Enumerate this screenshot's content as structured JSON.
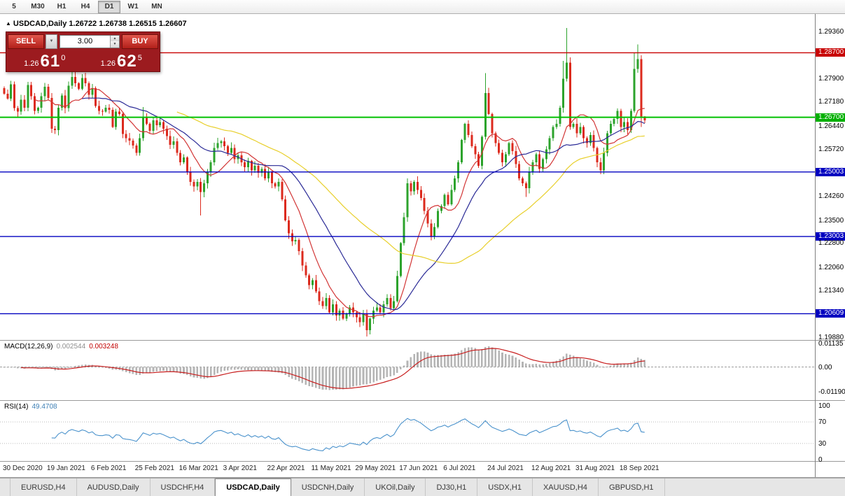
{
  "toolbar": {
    "timeframes": [
      {
        "label": "5",
        "active": false
      },
      {
        "label": "M30",
        "active": false
      },
      {
        "label": "H1",
        "active": false
      },
      {
        "label": "H4",
        "active": false
      },
      {
        "label": "D1",
        "active": true
      },
      {
        "label": "W1",
        "active": false
      },
      {
        "label": "MN",
        "active": false
      }
    ]
  },
  "chart_header": {
    "expand_icon": "▲",
    "symbol_period": "USDCAD,Daily",
    "ohlc": "1.26722 1.26738 1.26515 1.26607"
  },
  "trade_panel": {
    "sell_label": "SELL",
    "buy_label": "BUY",
    "volume": "3.00",
    "dropdown_icon": "▼",
    "spin_up_icon": "▲",
    "spin_down_icon": "▼",
    "bid": {
      "prefix": "1.26",
      "big": "61",
      "sup": "0"
    },
    "ask": {
      "prefix": "1.26",
      "big": "62",
      "sup": "5"
    }
  },
  "indicators": {
    "macd_name": "MACD(12,26,9)",
    "macd_main_value": "0.002544",
    "macd_signal_value": "0.003248",
    "rsi_name": "RSI(14)",
    "rsi_value": "49.4708"
  },
  "tabs": [
    {
      "label": "EURUSD,H4",
      "active": false
    },
    {
      "label": "AUDUSD,Daily",
      "active": false
    },
    {
      "label": "USDCHF,H4",
      "active": false
    },
    {
      "label": "USDCAD,Daily",
      "active": true
    },
    {
      "label": "USDCNH,Daily",
      "active": false
    },
    {
      "label": "UKOil,Daily",
      "active": false
    },
    {
      "label": "DJ30,H1",
      "active": false
    },
    {
      "label": "USDX,H1",
      "active": false
    },
    {
      "label": "XAUUSD,H4",
      "active": false
    },
    {
      "label": "GBPUSD,H1",
      "active": false
    }
  ],
  "chart_data": {
    "type": "candlestick",
    "symbol": "USDCAD",
    "timeframe": "Daily",
    "ohlc_current": {
      "open": 1.26722,
      "high": 1.26738,
      "low": 1.26515,
      "close": 1.26607
    },
    "ylim": [
      1.1988,
      1.2936
    ],
    "x_axis_dates": [
      {
        "text": "30 Dec 2020",
        "bar": 0
      },
      {
        "text": "19 Jan 2021",
        "bar": 13
      },
      {
        "text": "6 Feb 2021",
        "bar": 26
      },
      {
        "text": "25 Feb 2021",
        "bar": 39
      },
      {
        "text": "16 Mar 2021",
        "bar": 52
      },
      {
        "text": "3 Apr 2021",
        "bar": 65
      },
      {
        "text": "22 Apr 2021",
        "bar": 78
      },
      {
        "text": "11 May 2021",
        "bar": 91
      },
      {
        "text": "29 May 2021",
        "bar": 104
      },
      {
        "text": "17 Jun 2021",
        "bar": 117
      },
      {
        "text": "6 Jul 2021",
        "bar": 130
      },
      {
        "text": "24 Jul 2021",
        "bar": 143
      },
      {
        "text": "12 Aug 2021",
        "bar": 156
      },
      {
        "text": "31 Aug 2021",
        "bar": 169
      },
      {
        "text": "18 Sep 2021",
        "bar": 182
      }
    ],
    "price_axis": [
      {
        "text": "1.29360",
        "value": 1.2936,
        "style": "plain"
      },
      {
        "text": "1.28700",
        "value": 1.287,
        "style": "red"
      },
      {
        "text": "1.27900",
        "value": 1.279,
        "style": "plain"
      },
      {
        "text": "1.27180",
        "value": 1.2718,
        "style": "plain"
      },
      {
        "text": "1.26700",
        "value": 1.267,
        "style": "green"
      },
      {
        "text": "1.26440",
        "value": 1.2644,
        "style": "plain"
      },
      {
        "text": "1.25720",
        "value": 1.2572,
        "style": "plain"
      },
      {
        "text": "1.25003",
        "value": 1.25003,
        "style": "blue"
      },
      {
        "text": "1.24260",
        "value": 1.2426,
        "style": "plain"
      },
      {
        "text": "1.23500",
        "value": 1.235,
        "style": "plain"
      },
      {
        "text": "1.23003",
        "value": 1.23003,
        "style": "blue"
      },
      {
        "text": "1.22800",
        "value": 1.228,
        "style": "plain"
      },
      {
        "text": "1.22060",
        "value": 1.2206,
        "style": "plain"
      },
      {
        "text": "1.21340",
        "value": 1.2134,
        "style": "plain"
      },
      {
        "text": "1.20609",
        "value": 1.20609,
        "style": "blue"
      },
      {
        "text": "1.19880",
        "value": 1.1988,
        "style": "plain"
      }
    ],
    "horizontal_lines": [
      {
        "value": 1.287,
        "color": "#c80000",
        "width": 1.4
      },
      {
        "value": 1.267,
        "color": "#00c000",
        "width": 2
      },
      {
        "value": 1.25003,
        "color": "#0000c0",
        "width": 1.4
      },
      {
        "value": 1.23003,
        "color": "#0000c0",
        "width": 1.4
      },
      {
        "value": 1.20609,
        "color": "#0000c0",
        "width": 1.4
      }
    ],
    "candles": {
      "up_color": "#2ca32c",
      "down_color": "#dc2a1d",
      "wick_base": 0.0014,
      "first_open": 1.276,
      "closes": [
        1.2743,
        1.2728,
        1.2772,
        1.2698,
        1.2688,
        1.2725,
        1.27,
        1.277,
        1.2735,
        1.269,
        1.27,
        1.2735,
        1.2765,
        1.273,
        1.2635,
        1.263,
        1.27,
        1.2738,
        1.2698,
        1.2768,
        1.2795,
        1.2775,
        1.2758,
        1.2792,
        1.2775,
        1.274,
        1.276,
        1.2705,
        1.269,
        1.2688,
        1.27,
        1.2693,
        1.264,
        1.2688,
        1.268,
        1.2618,
        1.2605,
        1.2598,
        1.2582,
        1.256,
        1.2605,
        1.267,
        1.265,
        1.2628,
        1.266,
        1.2645,
        1.2655,
        1.2635,
        1.2612,
        1.2585,
        1.2595,
        1.256,
        1.253,
        1.2545,
        1.25,
        1.247,
        1.2455,
        1.247,
        1.2438,
        1.2465,
        1.25,
        1.253,
        1.2575,
        1.259,
        1.2595,
        1.258,
        1.256,
        1.2575,
        1.254,
        1.2552,
        1.253,
        1.2515,
        1.2535,
        1.2505,
        1.252,
        1.2498,
        1.251,
        1.248,
        1.25,
        1.2465,
        1.2455,
        1.247,
        1.2415,
        1.235,
        1.231,
        1.2285,
        1.229,
        1.2255,
        1.221,
        1.218,
        1.215,
        1.2165,
        1.213,
        1.21,
        1.2085,
        1.211,
        1.2065,
        1.209,
        1.2055,
        1.207,
        1.2045,
        1.206,
        1.208,
        1.2065,
        1.205,
        1.2035,
        1.206,
        1.201,
        1.2045,
        1.207,
        1.208,
        1.2065,
        1.209,
        1.211,
        1.2078,
        1.21,
        1.2178,
        1.228,
        1.236,
        1.2465,
        1.244,
        1.247,
        1.2445,
        1.242,
        1.238,
        1.234,
        1.23,
        1.233,
        1.238,
        1.2395,
        1.243,
        1.24,
        1.2445,
        1.248,
        1.253,
        1.26,
        1.265,
        1.2615,
        1.258,
        1.2555,
        1.252,
        1.261,
        1.2745,
        1.268,
        1.262,
        1.259,
        1.256,
        1.253,
        1.2555,
        1.259,
        1.2565,
        1.2525,
        1.248,
        1.2465,
        1.245,
        1.25,
        1.253,
        1.2555,
        1.251,
        1.254,
        1.257,
        1.2605,
        1.264,
        1.265,
        1.27,
        1.279,
        1.284,
        1.264,
        1.265,
        1.262,
        1.264,
        1.2605,
        1.259,
        1.2615,
        1.2575,
        1.253,
        1.2505,
        1.256,
        1.262,
        1.265,
        1.2665,
        1.269,
        1.264,
        1.2655,
        1.263,
        1.269,
        1.282,
        1.285,
        1.2672,
        1.2661
      ],
      "overrides": {
        "20": {
          "high": 1.284
        },
        "41": {
          "high": 1.2702
        },
        "58": {
          "low": 1.2365
        },
        "107": {
          "low": 1.199
        },
        "108": {
          "low": 1.1997
        },
        "142": {
          "high": 1.2807
        },
        "154": {
          "low": 1.2423
        },
        "165": {
          "high": 1.2845
        },
        "166": {
          "high": 1.2947
        },
        "176": {
          "low": 1.2493
        },
        "186": {
          "high": 1.287
        },
        "187": {
          "high": 1.2896
        },
        "188": {
          "low": 1.264
        },
        "189": {
          "high": 1.2674,
          "low": 1.2652
        }
      }
    },
    "moving_averages": [
      {
        "period": 10,
        "color": "#d23535"
      },
      {
        "period": 24,
        "color": "#2a2a96"
      },
      {
        "period": 52,
        "color": "#e8cf2a"
      }
    ],
    "macd": {
      "params": [
        12,
        26,
        9
      ],
      "current_macd": 0.002544,
      "current_signal": 0.003248,
      "ylim": [
        -0.0119,
        0.01135
      ],
      "histogram_color": "#b5b5b5",
      "signal_color": "#c81e1e",
      "axis": [
        {
          "text": "0.01135",
          "value": 0.01135
        },
        {
          "text": "0.00",
          "value": 0
        },
        {
          "text": "-0.01190",
          "value": -0.0119
        }
      ]
    },
    "rsi": {
      "period": 14,
      "current": 49.4708,
      "color": "#4a92cc",
      "levels": [
        70,
        30
      ],
      "axis": [
        {
          "text": "100",
          "value": 100
        },
        {
          "text": "70",
          "value": 70
        },
        {
          "text": "30",
          "value": 30
        },
        {
          "text": "0",
          "value": 0
        }
      ]
    }
  }
}
